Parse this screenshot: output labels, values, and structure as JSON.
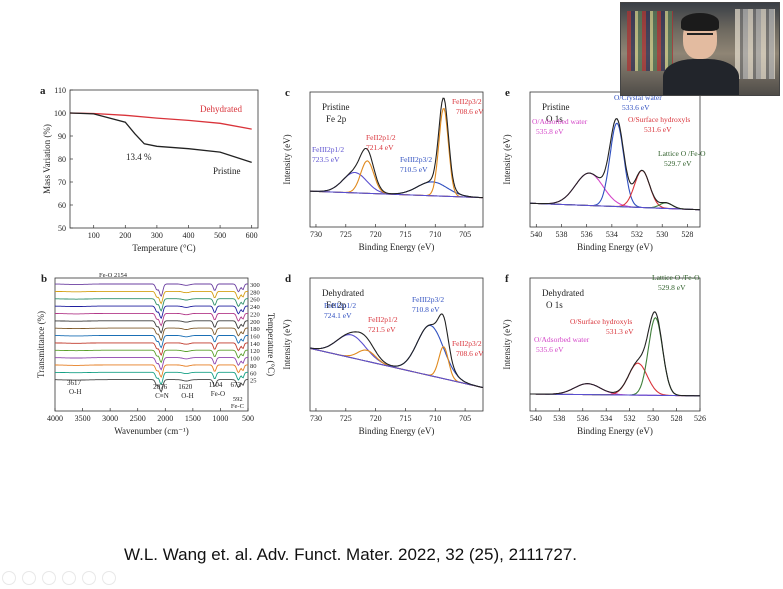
{
  "colors": {
    "black": "#222222",
    "red": "#d9333a",
    "purple": "#5a4fcf",
    "blue": "#3050c0",
    "orange": "#e08a1e",
    "green": "#3f7f3a",
    "magenta": "#d445c8",
    "darkgreen": "#2f5f2a",
    "pink": "#e14d8e",
    "olive": "#6c7f1a"
  },
  "webcam": {
    "label": "presenter-video"
  },
  "citation": "W.L. Wang et. al. Adv. Funct. Mater. 2022, 32 (25), 2111727.",
  "chart_data": [
    {
      "id": "a",
      "panel_label": "a",
      "type": "line",
      "xlabel": "Temperature (°C)",
      "ylabel": "Mass Variation (%)",
      "xlim": [
        25,
        620
      ],
      "ylim": [
        50,
        110
      ],
      "xticks": [
        "100",
        "200",
        "300",
        "400",
        "500",
        "600"
      ],
      "yticks": [
        "50",
        "60",
        "70",
        "80",
        "90",
        "100",
        "110"
      ],
      "series": [
        {
          "name": "Dehydrated",
          "color": "red",
          "x": [
            25,
            100,
            200,
            300,
            400,
            500,
            600
          ],
          "y": [
            100,
            99.8,
            99.0,
            97.8,
            96.8,
            95.5,
            93.0
          ]
        },
        {
          "name": "Pristine",
          "color": "black",
          "x": [
            25,
            100,
            200,
            230,
            260,
            300,
            400,
            500,
            600
          ],
          "y": [
            100,
            99.6,
            96,
            91,
            86.6,
            85.5,
            84.5,
            83.0,
            78.5
          ]
        }
      ],
      "annotations": [
        {
          "text": "13.4 %"
        }
      ]
    },
    {
      "id": "b",
      "panel_label": "b",
      "type": "line",
      "xlabel": "Wavenumber (cm⁻¹)",
      "ylabel": "Transmittance (%)",
      "y2label": "Temperature (°C)",
      "xlim": [
        4000,
        500
      ],
      "xticks": [
        "4000",
        "3500",
        "3000",
        "2500",
        "2000",
        "1500",
        "1000",
        "500"
      ],
      "temperatures": [
        "300",
        "280",
        "260",
        "240",
        "220",
        "200",
        "180",
        "160",
        "140",
        "120",
        "100",
        "80",
        "60",
        "25"
      ],
      "colors": [
        "#6b3fa0",
        "#d4a017",
        "#2f8f6b",
        "#1f1f9f",
        "#b23a8a",
        "#3a3a3a",
        "#7f5a2a",
        "#1a6fb5",
        "#c0392b",
        "#5aa02c",
        "#8e44ad",
        "#e67e22",
        "#16a085",
        "#444444"
      ],
      "annotations": [
        {
          "text": "Fe-O 2154"
        },
        {
          "text": "3617"
        },
        {
          "text": "O-H"
        },
        {
          "text": "2076"
        },
        {
          "text": "C≡N"
        },
        {
          "text": "1620"
        },
        {
          "text": "O-H"
        },
        {
          "text": "1104"
        },
        {
          "text": "Fe-O"
        },
        {
          "text": "673"
        },
        {
          "text": "592"
        },
        {
          "text": "Fe-C"
        }
      ]
    },
    {
      "id": "c",
      "panel_label": "c",
      "type": "line",
      "title": "Pristine",
      "subtitle": "Fe 2p",
      "xlabel": "Binding Energy (eV)",
      "ylabel": "Intensity (eV)",
      "xlim": [
        731,
        702
      ],
      "xticks": [
        "730",
        "725",
        "720",
        "715",
        "710",
        "705"
      ],
      "series": [
        {
          "name": "raw",
          "color": "black",
          "peaks": [
            [
              723.5,
              0.22,
              2.0
            ],
            [
              721.4,
              0.35,
              1.1
            ],
            [
              710.5,
              0.15,
              2.5
            ],
            [
              708.6,
              0.95,
              0.8
            ]
          ],
          "baseline": [
            0.25,
            0.18
          ]
        },
        {
          "name": "FeIII 2p1/2",
          "color": "purple",
          "peaks": [
            [
              723.5,
              0.22,
              2.0
            ]
          ]
        },
        {
          "name": "FeII 2p1/2",
          "color": "orange",
          "peaks": [
            [
              721.4,
              0.35,
              1.1
            ]
          ]
        },
        {
          "name": "FeIII 2p3/2",
          "color": "blue",
          "peaks": [
            [
              710.5,
              0.15,
              2.5
            ]
          ]
        },
        {
          "name": "FeII 2p3/2",
          "color": "orange",
          "peaks": [
            [
              708.6,
              0.95,
              0.8
            ]
          ]
        }
      ],
      "annotations": [
        {
          "text": "FeIII2p1/2 723.5 eV"
        },
        {
          "text": "FeII2p1/2 721.4 eV"
        },
        {
          "text": "FeIII2p3/2 710.5 eV"
        },
        {
          "text": "FeII2p3/2 708.6 eV"
        }
      ]
    },
    {
      "id": "d",
      "panel_label": "d",
      "type": "line",
      "title": "Dehydrated",
      "subtitle": "Fe 2p",
      "xlabel": "Binding Energy (eV)",
      "ylabel": "Intensity (eV)",
      "xlim": [
        731,
        702
      ],
      "xticks": [
        "730",
        "725",
        "720",
        "715",
        "710",
        "705"
      ],
      "series": [
        {
          "name": "raw",
          "color": "black",
          "peaks": [
            [
              724.1,
              0.25,
              2.4
            ],
            [
              721.5,
              0.12,
              1.5
            ],
            [
              710.8,
              0.55,
              2.2
            ],
            [
              708.6,
              0.35,
              0.8
            ]
          ],
          "baseline": [
            0.55,
            0.12
          ]
        }
      ],
      "annotations": [
        {
          "text": "FeIII2p1/2 724.1 eV"
        },
        {
          "text": "FeII2p1/2 721.5 eV"
        },
        {
          "text": "FeIII2p3/2 710.8 eV"
        },
        {
          "text": "FeII2p3/2 708.6 eV"
        }
      ]
    },
    {
      "id": "e",
      "panel_label": "e",
      "type": "line",
      "title": "Pristine",
      "subtitle": "O 1s",
      "xlabel": "Binding Energy (eV)",
      "ylabel": "Intensity (eV)",
      "xlim": [
        540.5,
        527
      ],
      "xticks": [
        "540",
        "538",
        "536",
        "534",
        "532",
        "530",
        "528"
      ],
      "series": [
        {
          "name": "raw",
          "color": "black",
          "peaks": [
            [
              535.8,
              0.35,
              1.1
            ],
            [
              533.6,
              0.9,
              0.55
            ],
            [
              531.6,
              0.4,
              0.6
            ],
            [
              529.7,
              0.06,
              0.5
            ]
          ],
          "baseline": [
            0.12,
            0.05
          ]
        }
      ],
      "annotations": [
        {
          "text": "O/Crystal water 533.6 eV"
        },
        {
          "text": "O/Adsorbed water 535.8 eV"
        },
        {
          "text": "O/Surface hydroxyls 531.6 eV"
        },
        {
          "text": "Lattice O /Fe-O 529.7 eV"
        }
      ]
    },
    {
      "id": "f",
      "panel_label": "f",
      "type": "line",
      "title": "Dehydrated",
      "subtitle": "O 1s",
      "xlabel": "Binding Energy (eV)",
      "ylabel": "Intensity (eV)",
      "xlim": [
        540.5,
        526
      ],
      "xticks": [
        "540",
        "538",
        "536",
        "534",
        "532",
        "530",
        "528",
        "526"
      ],
      "series": [
        {
          "name": "raw",
          "color": "black",
          "peaks": [
            [
              535.6,
              0.12,
              1.1
            ],
            [
              531.3,
              0.35,
              0.8
            ],
            [
              529.8,
              0.85,
              0.6
            ]
          ],
          "baseline": [
            0.05,
            0.03
          ]
        }
      ],
      "annotations": [
        {
          "text": "Lattice O /Fe-O 529.8 eV"
        },
        {
          "text": "O/Surface hydroxyls 531.3 eV"
        },
        {
          "text": "O/Adsorbed water 535.6 eV"
        }
      ]
    }
  ]
}
